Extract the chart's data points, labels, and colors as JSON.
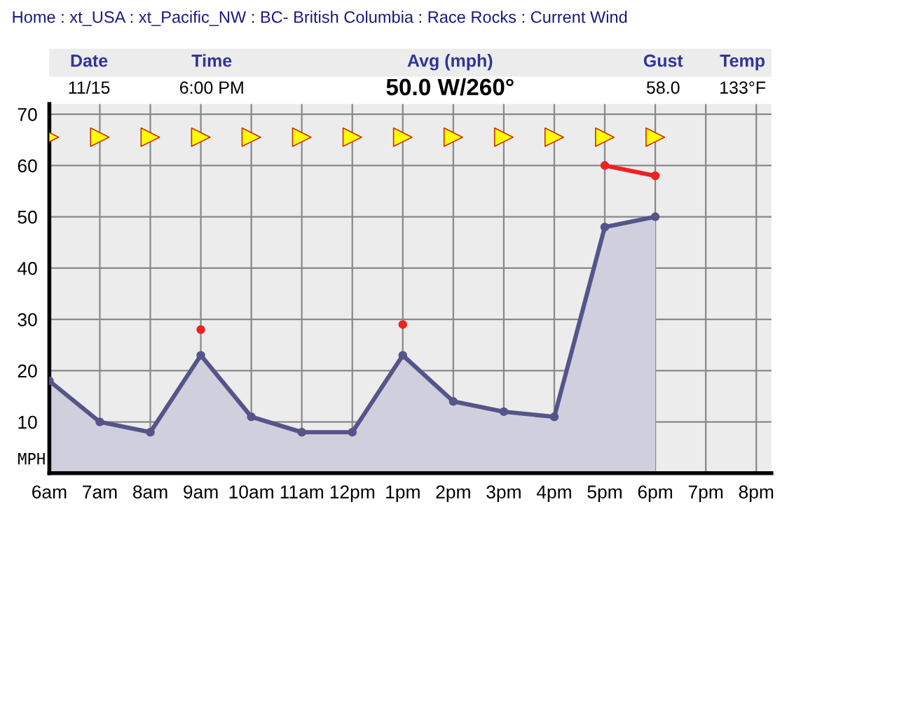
{
  "chart_data": {
    "type": "area",
    "title": "Home : xt_USA : xt_Pacific_NW : BC- British Columbia : Race Rocks : Current Wind",
    "ylabel": "MPH",
    "annotations": [
      "Date",
      "Time",
      "Avg (mph)",
      "Gust",
      "Temp",
      "11/15",
      "6:00 PM",
      "50.0 W/260°",
      "58.0",
      "133°F"
    ],
    "categories": [
      "6am",
      "7am",
      "8am",
      "9am",
      "10am",
      "11am",
      "12pm",
      "1pm",
      "2pm",
      "3pm",
      "4pm",
      "5pm",
      "6pm",
      "7pm",
      "8pm"
    ],
    "series": [
      {
        "color": "#55558a",
        "values": [
          18,
          10,
          8,
          23,
          11,
          8,
          8,
          23,
          14,
          12,
          11,
          48,
          50,
          null,
          null
        ]
      },
      {
        "type": "line",
        "color": "#ee2222",
        "values": [
          null,
          null,
          null,
          28,
          null,
          null,
          null,
          29,
          null,
          null,
          null,
          60,
          58,
          null,
          null
        ]
      }
    ],
    "ylim": [
      0,
      72
    ],
    "yticks": [
      10,
      20,
      30,
      40,
      50,
      60,
      70
    ],
    "grid": true,
    "marker": "circle"
  }
}
